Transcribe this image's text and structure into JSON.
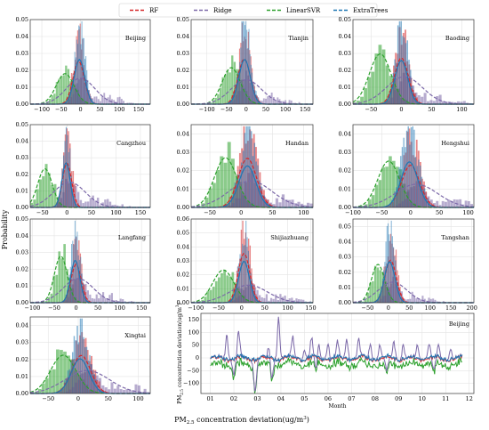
{
  "figure": {
    "ylabel": "Probability",
    "xlabel_prefix": "PM",
    "xlabel_sub": "2.5",
    "xlabel_suffix": " concentration deviation(ug/m",
    "xlabel_sup": "3",
    "xlabel_close": ")"
  },
  "legend": [
    {
      "name": "RF",
      "color": "#d62728"
    },
    {
      "name": "Ridge",
      "color": "#7b68a8"
    },
    {
      "name": "LinearSVR",
      "color": "#2ca02c"
    },
    {
      "name": "ExtraTrees",
      "color": "#1f77b4"
    }
  ],
  "colors": {
    "rf": "#d62728",
    "ridge": "#7b68a8",
    "svr": "#2ca02c",
    "et": "#1f77b4"
  },
  "chart_data": [
    {
      "type": "bar",
      "city": "Beijing",
      "xlim": [
        -130,
        180
      ],
      "ylim": [
        0,
        0.05
      ],
      "xticks": [
        -100,
        -50,
        0,
        50,
        100,
        150
      ],
      "yticks": [
        0,
        0.01,
        0.02,
        0.03,
        0.04,
        0.05
      ],
      "series": {
        "rf": {
          "mu": -5,
          "sigma": 14,
          "peak": 0.041
        },
        "ridge": {
          "mu": 0,
          "sigma": 32,
          "peak": 0.017
        },
        "svr": {
          "mu": -40,
          "sigma": 22,
          "peak": 0.02
        },
        "et": {
          "mu": -3,
          "sigma": 13,
          "peak": 0.048
        }
      }
    },
    {
      "type": "bar",
      "city": "Tianjin",
      "xlim": [
        -140,
        170
      ],
      "ylim": [
        0,
        0.05
      ],
      "xticks": [
        -100,
        -50,
        0,
        50,
        100,
        150
      ],
      "yticks": [
        0,
        0.01,
        0.02,
        0.03,
        0.04,
        0.05
      ],
      "series": {
        "rf": {
          "mu": -5,
          "sigma": 15,
          "peak": 0.043
        },
        "ridge": {
          "mu": 0,
          "sigma": 34,
          "peak": 0.016
        },
        "svr": {
          "mu": -38,
          "sigma": 22,
          "peak": 0.024
        },
        "et": {
          "mu": -4,
          "sigma": 14,
          "peak": 0.048
        }
      }
    },
    {
      "type": "bar",
      "city": "Baoding",
      "xlim": [
        -80,
        120
      ],
      "ylim": [
        0,
        0.05
      ],
      "xticks": [
        -50,
        0,
        50,
        100
      ],
      "yticks": [
        0,
        0.01,
        0.02,
        0.03,
        0.04,
        0.05
      ],
      "series": {
        "rf": {
          "mu": 0,
          "sigma": 11,
          "peak": 0.044
        },
        "ridge": {
          "mu": 5,
          "sigma": 26,
          "peak": 0.018
        },
        "svr": {
          "mu": -35,
          "sigma": 17,
          "peak": 0.033
        },
        "et": {
          "mu": 0,
          "sigma": 10,
          "peak": 0.047
        }
      }
    },
    {
      "type": "bar",
      "city": "Cangzhou",
      "xlim": [
        -75,
        170
      ],
      "ylim": [
        0,
        0.05
      ],
      "xticks": [
        -50,
        0,
        50,
        100,
        150
      ],
      "yticks": [
        0,
        0.01,
        0.02,
        0.03,
        0.04,
        0.05
      ],
      "series": {
        "rf": {
          "mu": 0,
          "sigma": 9,
          "peak": 0.043
        },
        "ridge": {
          "mu": 5,
          "sigma": 28,
          "peak": 0.017
        },
        "svr": {
          "mu": -45,
          "sigma": 14,
          "peak": 0.026
        },
        "et": {
          "mu": -2,
          "sigma": 8,
          "peak": 0.049
        }
      }
    },
    {
      "type": "bar",
      "city": "Handan",
      "xlim": [
        -80,
        115
      ],
      "ylim": [
        0,
        0.045
      ],
      "xticks": [
        -50,
        0,
        50,
        100
      ],
      "yticks": [
        0,
        0.01,
        0.02,
        0.03,
        0.04
      ],
      "series": {
        "rf": {
          "mu": 10,
          "sigma": 14,
          "peak": 0.043
        },
        "ridge": {
          "mu": 15,
          "sigma": 30,
          "peak": 0.016
        },
        "svr": {
          "mu": -25,
          "sigma": 17,
          "peak": 0.03
        },
        "et": {
          "mu": 10,
          "sigma": 13,
          "peak": 0.041
        }
      }
    },
    {
      "type": "bar",
      "city": "Hengshui",
      "xlim": [
        -100,
        110
      ],
      "ylim": [
        0,
        0.045
      ],
      "xticks": [
        -100,
        -50,
        0,
        50,
        100
      ],
      "yticks": [
        0,
        0.01,
        0.02,
        0.03,
        0.04
      ],
      "series": {
        "rf": {
          "mu": 0,
          "sigma": 15,
          "peak": 0.037
        },
        "ridge": {
          "mu": 10,
          "sigma": 32,
          "peak": 0.014
        },
        "svr": {
          "mu": -38,
          "sigma": 18,
          "peak": 0.028
        },
        "et": {
          "mu": -2,
          "sigma": 14,
          "peak": 0.045
        }
      }
    },
    {
      "type": "bar",
      "city": "Langfang",
      "xlim": [
        -105,
        170
      ],
      "ylim": [
        0,
        0.05
      ],
      "xticks": [
        -100,
        -50,
        0,
        50,
        100,
        150
      ],
      "yticks": [
        0,
        0.01,
        0.02,
        0.03,
        0.04,
        0.05
      ],
      "series": {
        "rf": {
          "mu": 0,
          "sigma": 11,
          "peak": 0.037
        },
        "ridge": {
          "mu": 5,
          "sigma": 30,
          "peak": 0.016
        },
        "svr": {
          "mu": -35,
          "sigma": 14,
          "peak": 0.031
        },
        "et": {
          "mu": -2,
          "sigma": 10,
          "peak": 0.046
        }
      }
    },
    {
      "type": "bar",
      "city": "Shijiazhuang",
      "xlim": [
        -110,
        155
      ],
      "ylim": [
        0,
        0.06
      ],
      "xticks": [
        -100,
        -50,
        0,
        50,
        100,
        150
      ],
      "yticks": [
        0,
        0.01,
        0.02,
        0.03,
        0.04,
        0.05,
        0.06
      ],
      "series": {
        "rf": {
          "mu": 5,
          "sigma": 12,
          "peak": 0.057
        },
        "ridge": {
          "mu": 15,
          "sigma": 36,
          "peak": 0.014
        },
        "svr": {
          "mu": -40,
          "sigma": 22,
          "peak": 0.026
        },
        "et": {
          "mu": 5,
          "sigma": 11,
          "peak": 0.054
        }
      }
    },
    {
      "type": "bar",
      "city": "Tangshan",
      "xlim": [
        -85,
        205
      ],
      "ylim": [
        0,
        0.055
      ],
      "xticks": [
        -50,
        0,
        50,
        100,
        150,
        200
      ],
      "yticks": [
        0,
        0.01,
        0.02,
        0.03,
        0.04,
        0.05
      ],
      "series": {
        "rf": {
          "mu": 5,
          "sigma": 13,
          "peak": 0.045
        },
        "ridge": {
          "mu": 10,
          "sigma": 30,
          "peak": 0.015
        },
        "svr": {
          "mu": -25,
          "sigma": 15,
          "peak": 0.028
        },
        "et": {
          "mu": 3,
          "sigma": 12,
          "peak": 0.049
        }
      }
    },
    {
      "type": "bar",
      "city": "Xingtai",
      "xlim": [
        -80,
        120
      ],
      "ylim": [
        0,
        0.045
      ],
      "xticks": [
        -50,
        0,
        50,
        100
      ],
      "yticks": [
        0,
        0.01,
        0.02,
        0.03,
        0.04
      ],
      "series": {
        "rf": {
          "mu": 5,
          "sigma": 15,
          "peak": 0.036
        },
        "ridge": {
          "mu": 15,
          "sigma": 32,
          "peak": 0.015
        },
        "svr": {
          "mu": -25,
          "sigma": 20,
          "peak": 0.025
        },
        "et": {
          "mu": 3,
          "sigma": 14,
          "peak": 0.037
        }
      }
    },
    {
      "type": "line",
      "city": "Beijing",
      "xlim": [
        0.6,
        12.2
      ],
      "ylim": [
        -140,
        175
      ],
      "xticks": [
        1,
        2,
        3,
        4,
        5,
        6,
        7,
        8,
        9,
        10,
        11,
        12
      ],
      "xticklabels": [
        "01",
        "02",
        "03",
        "04",
        "05",
        "06",
        "07",
        "08",
        "09",
        "10",
        "11",
        "12"
      ],
      "yticks": [
        -100,
        -50,
        0,
        50,
        100,
        150
      ],
      "xlabel": "Month",
      "ylabel_prefix": "PM",
      "ylabel_sub": "2.5",
      "ylabel_suffix": " concentration deviation(ug/m",
      "ylabel_sup": "3",
      "ylabel_close": ")",
      "spikes": [
        [
          1.7,
          95
        ],
        [
          2.2,
          100
        ],
        [
          3.5,
          55
        ],
        [
          3.9,
          165
        ],
        [
          4.5,
          80
        ],
        [
          5.0,
          40
        ],
        [
          5.3,
          75
        ],
        [
          5.6,
          60
        ],
        [
          6.0,
          60
        ],
        [
          6.4,
          60
        ],
        [
          6.8,
          75
        ],
        [
          7.3,
          70
        ],
        [
          7.8,
          60
        ],
        [
          8.2,
          55
        ],
        [
          8.8,
          65
        ],
        [
          9.2,
          55
        ],
        [
          9.8,
          50
        ],
        [
          10.3,
          55
        ],
        [
          10.7,
          45
        ],
        [
          11.2,
          40
        ]
      ],
      "dips": [
        [
          2.0,
          -60
        ],
        [
          2.9,
          -120
        ],
        [
          3.6,
          -90
        ],
        [
          5.5,
          -55
        ],
        [
          8.5,
          -55
        ],
        [
          10.5,
          -50
        ]
      ]
    }
  ]
}
